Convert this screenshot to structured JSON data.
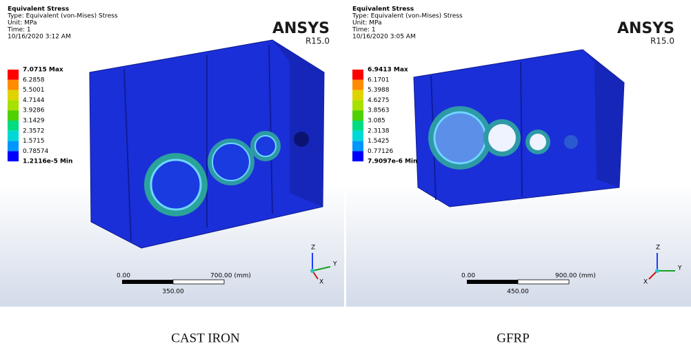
{
  "panels": [
    {
      "header": {
        "title": "Equivalent Stress",
        "type": "Type: Equivalent (von-Mises) Stress",
        "unit": "Unit: MPa",
        "time": "Time: 1",
        "date": "10/16/2020 3:12 AM"
      },
      "logo": {
        "name": "ANSYS",
        "version": "R15.0"
      },
      "legend": [
        "7.0715 Max",
        "6.2858",
        "5.5001",
        "4.7144",
        "3.9286",
        "3.1429",
        "2.3572",
        "1.5715",
        "0.78574",
        "1.2116e-5 Min"
      ],
      "scale_bar": {
        "start": "0.00",
        "end": "700.00 (mm)",
        "mid": "350.00"
      },
      "axes": {
        "z": "Z",
        "y": "Y",
        "x": "X"
      }
    },
    {
      "header": {
        "title": "Equivalent Stress",
        "type": "Type: Equivalent (von-Mises) Stress",
        "unit": "Unit: MPa",
        "time": "Time: 1",
        "date": "10/16/2020 3:05 AM"
      },
      "logo": {
        "name": "ANSYS",
        "version": "R15.0"
      },
      "legend": [
        "6.9413 Max",
        "6.1701",
        "5.3988",
        "4.6275",
        "3.8563",
        "3.085",
        "2.3138",
        "1.5425",
        "0.77126",
        "7.9097e-6 Min"
      ],
      "scale_bar": {
        "start": "0.00",
        "end": "900.00 (mm)",
        "mid": "450.00"
      },
      "axes": {
        "z": "Z",
        "y": "Y",
        "x": "X"
      }
    }
  ],
  "captions": [
    "CAST IRON",
    "GFRP"
  ]
}
